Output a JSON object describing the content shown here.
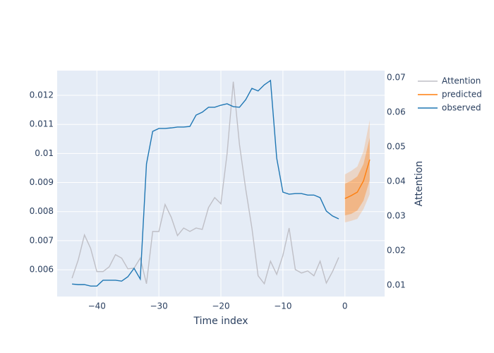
{
  "chart_data": {
    "type": "line",
    "xlabel": "Time index",
    "y2label": "Attention",
    "xlim": [
      -46.4,
      6.4
    ],
    "xticks": [
      {
        "value": -40,
        "label": "−40"
      },
      {
        "value": -30,
        "label": "−30"
      },
      {
        "value": -20,
        "label": "−20"
      },
      {
        "value": -10,
        "label": "−10"
      },
      0
    ],
    "ylim": [
      0.00508,
      0.01285
    ],
    "yticks": [
      0.006,
      0.007,
      0.008,
      0.009,
      0.01,
      0.011,
      0.012
    ],
    "y2lim": [
      0.0067,
      0.072
    ],
    "y2ticks": [
      0.01,
      0.02,
      0.03,
      0.04,
      0.05,
      0.06,
      0.07
    ],
    "grid": true,
    "series": [
      {
        "name": "Attention",
        "color": "#bfbfc6",
        "axis": "y2",
        "x": [
          -44,
          -43,
          -42,
          -41,
          -40,
          -39,
          -38,
          -37,
          -36,
          -35,
          -34,
          -33,
          -32,
          -31,
          -30,
          -29,
          -28,
          -27,
          -26,
          -25,
          -24,
          -23,
          -22,
          -21,
          -20,
          -19,
          -18,
          -17,
          -16,
          -15,
          -14,
          -13,
          -12,
          -11,
          -10,
          -9,
          -8,
          -7,
          -6,
          -5,
          -4,
          -3,
          -2,
          -1
        ],
        "values": [
          0.012,
          0.0173,
          0.0245,
          0.0206,
          0.0139,
          0.0139,
          0.0153,
          0.0188,
          0.0178,
          0.0147,
          0.0149,
          0.0178,
          0.0104,
          0.0255,
          0.0255,
          0.0333,
          0.0296,
          0.0243,
          0.0265,
          0.0255,
          0.0265,
          0.0261,
          0.0324,
          0.0353,
          0.0335,
          0.048,
          0.0688,
          0.0506,
          0.0378,
          0.0265,
          0.0127,
          0.0104,
          0.0169,
          0.0131,
          0.0186,
          0.0265,
          0.0145,
          0.0135,
          0.0141,
          0.0127,
          0.0169,
          0.0106,
          0.0139,
          0.018
        ]
      },
      {
        "name": "predicted",
        "color": "#ff7f0e",
        "x": [
          0,
          1,
          2,
          3,
          4
        ],
        "values": [
          0.00845,
          0.00855,
          0.00867,
          0.00906,
          0.00979
        ],
        "bands": [
          {
            "color": "rgba(255,127,14,0.2)",
            "lower": [
              0.00763,
              0.00768,
              0.00775,
              0.00809,
              0.0086
            ],
            "upper": [
              0.00928,
              0.0094,
              0.00955,
              0.01008,
              0.01115
            ]
          },
          {
            "color": "rgba(255,127,14,0.35)",
            "lower": [
              0.00787,
              0.00792,
              0.00804,
              0.00838,
              0.00908
            ],
            "upper": [
              0.00896,
              0.00906,
              0.00921,
              0.00964,
              0.01054
            ]
          }
        ]
      },
      {
        "name": "observed",
        "color": "#1f77b4",
        "x": [
          -44,
          -43,
          -42,
          -41,
          -40,
          -39,
          -38,
          -37,
          -36,
          -35,
          -34,
          -33,
          -32,
          -31,
          -30,
          -29,
          -28,
          -27,
          -26,
          -25,
          -24,
          -23,
          -22,
          -21,
          -20,
          -19,
          -18,
          -17,
          -16,
          -15,
          -14,
          -13,
          -12,
          -11,
          -10,
          -9,
          -8,
          -7,
          -6,
          -5,
          -4,
          -3,
          -2,
          -1
        ],
        "values": [
          0.00551,
          0.00549,
          0.00549,
          0.00544,
          0.00544,
          0.00564,
          0.00564,
          0.00564,
          0.00561,
          0.00576,
          0.00605,
          0.00568,
          0.00964,
          0.01076,
          0.01086,
          0.01086,
          0.01088,
          0.01091,
          0.01091,
          0.01093,
          0.01132,
          0.01142,
          0.01159,
          0.01159,
          0.01166,
          0.01171,
          0.01161,
          0.01159,
          0.01185,
          0.01224,
          0.01215,
          0.01236,
          0.01251,
          0.00984,
          0.00867,
          0.0086,
          0.00862,
          0.00862,
          0.00857,
          0.00857,
          0.00848,
          0.00802,
          0.00785,
          0.00775
        ]
      }
    ]
  }
}
